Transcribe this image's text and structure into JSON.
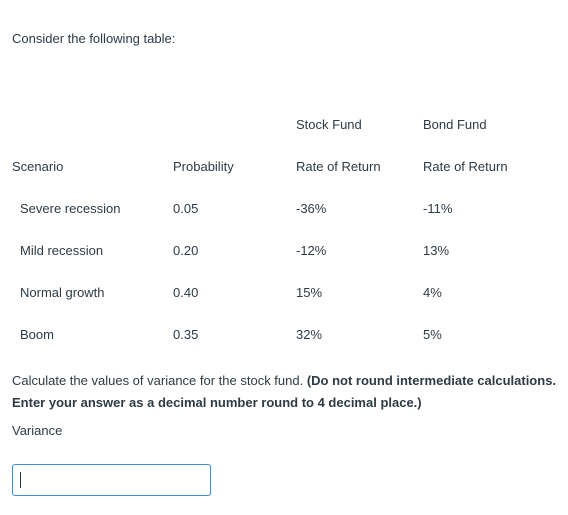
{
  "intro": "Consider the following table:",
  "table": {
    "group_headers": {
      "stock": "Stock Fund",
      "bond": "Bond Fund"
    },
    "column_headers": {
      "scenario": "Scenario",
      "probability": "Probability",
      "stock_return": "Rate of Return",
      "bond_return": "Rate of Return"
    },
    "rows": [
      {
        "scenario": "Severe recession",
        "probability": "0.05",
        "stock": "-36%",
        "bond": "-11%"
      },
      {
        "scenario": "Mild recession",
        "probability": "0.20",
        "stock": "-12%",
        "bond": "13%"
      },
      {
        "scenario": "Normal growth",
        "probability": "0.40",
        "stock": "15%",
        "bond": "4%"
      },
      {
        "scenario": "Boom",
        "probability": "0.35",
        "stock": "32%",
        "bond": "5%"
      }
    ]
  },
  "question": {
    "text": "Calculate the values of variance for the stock fund.",
    "instruction": "(Do not round intermediate calculations. Enter your answer as a decimal number round to 4 decimal place.)"
  },
  "answer": {
    "label": "Variance",
    "value": ""
  }
}
